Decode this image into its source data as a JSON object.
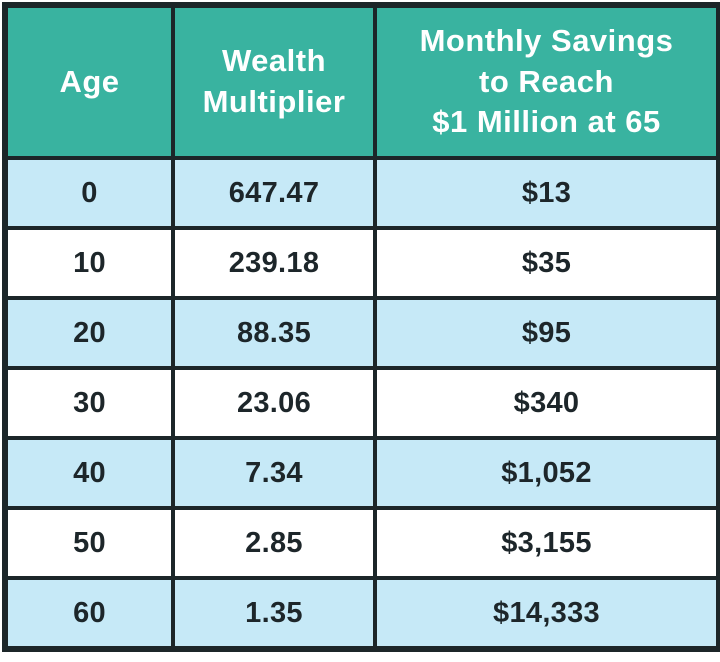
{
  "chart_data": {
    "type": "table",
    "columns": [
      "Age",
      "Wealth Multiplier",
      "Monthly Savings to Reach $1 Million at 65"
    ],
    "rows": [
      [
        "0",
        "647.47",
        "$13"
      ],
      [
        "10",
        "239.18",
        "$35"
      ],
      [
        "20",
        "88.35",
        "$95"
      ],
      [
        "30",
        "23.06",
        "$340"
      ],
      [
        "40",
        "7.34",
        "$1,052"
      ],
      [
        "50",
        "2.85",
        "$3,155"
      ],
      [
        "60",
        "1.35",
        "$14,333"
      ]
    ],
    "layout_hints": {
      "striped_rows": "odd rows light blue, even rows white",
      "header_position": "top"
    }
  },
  "table": {
    "headers_display": [
      "Age",
      "Wealth\nMultiplier",
      "Monthly Savings\nto Reach\n$1 Million at 65"
    ]
  },
  "colors": {
    "header_bg": "#39b3a0",
    "header_text": "#ffffff",
    "row_alt_bg": "#c6e9f7",
    "row_bg": "#ffffff",
    "border": "#1c2629",
    "cell_text": "#1d262a"
  }
}
